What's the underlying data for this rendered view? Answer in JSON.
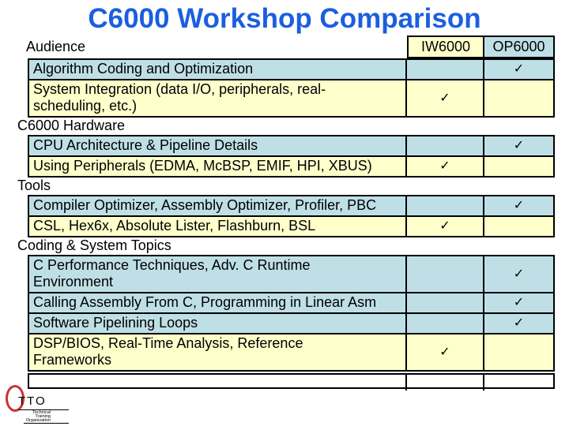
{
  "title": "C6000 Workshop Comparison",
  "title_color": "#1b5fe0",
  "check_glyph": "✓",
  "row_colors": {
    "iw": "#ffffcc",
    "op": "#bfdfe6"
  },
  "logo": {
    "text": "TTO",
    "sub_lines": [
      "Technical",
      "Training",
      "Organization"
    ],
    "ellipse_color": "#cc3333"
  },
  "table": {
    "columns": {
      "audience": "Audience",
      "iw": "IW6000",
      "op": "OP6000"
    },
    "groups": [
      {
        "section": "",
        "rows": [
          {
            "topic": "Algorithm Coding and Optimization",
            "iw": false,
            "op": true
          },
          {
            "topic": "System Integration (data I/O, peripherals, real-scheduling, etc.)",
            "iw": true,
            "op": false
          }
        ]
      },
      {
        "section": "C6000 Hardware",
        "rows": [
          {
            "topic": "CPU Architecture & Pipeline Details",
            "iw": false,
            "op": true
          },
          {
            "topic": "Using Peripherals (EDMA, McBSP, EMIF, HPI, XBUS)",
            "iw": true,
            "op": false
          }
        ]
      },
      {
        "section": "Tools",
        "rows": [
          {
            "topic": "Compiler Optimizer, Assembly Optimizer, Profiler, PBC",
            "iw": false,
            "op": true
          },
          {
            "topic": "CSL, Hex6x, Absolute Lister, Flashburn, BSL",
            "iw": true,
            "op": false
          }
        ]
      },
      {
        "section": "Coding & System Topics",
        "rows": [
          {
            "topic": "C Performance Techniques, Adv. C Runtime Environment",
            "iw": false,
            "op": true
          },
          {
            "topic": "Calling Assembly From C, Programming in Linear Asm",
            "iw": false,
            "op": true
          },
          {
            "topic": "Software Pipelining Loops",
            "iw": false,
            "op": true
          },
          {
            "topic": "DSP/BIOS, Real-Time Analysis, Reference Frameworks",
            "iw": true,
            "op": false
          }
        ]
      }
    ]
  }
}
